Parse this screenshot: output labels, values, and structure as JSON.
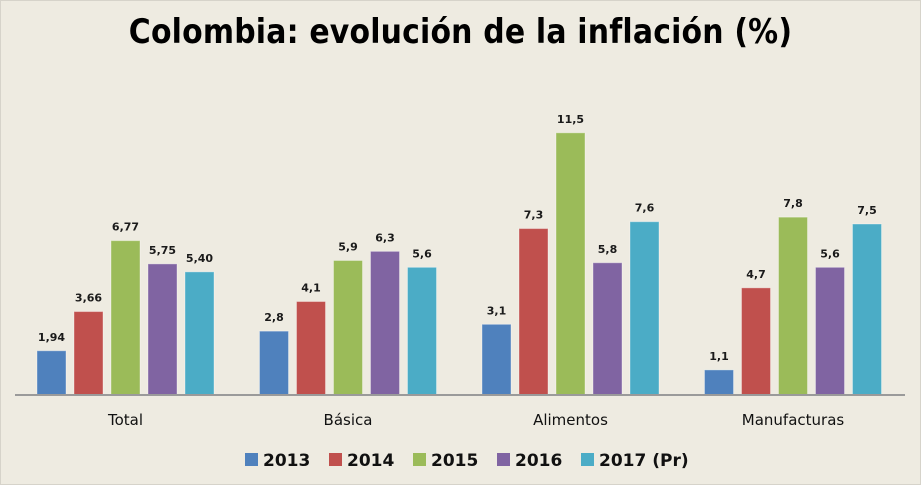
{
  "chart_data": {
    "type": "bar",
    "title": "Colombia: evolución de la inflación (%)",
    "xlabel": "",
    "ylabel": "",
    "ylim": [
      0,
      12
    ],
    "grid": false,
    "legend_position": "bottom",
    "categories": [
      "Total",
      "Básica",
      "Alimentos",
      "Manufacturas"
    ],
    "series": [
      {
        "name": "2013",
        "color": "#4f81bd",
        "values": [
          1.94,
          2.8,
          3.1,
          1.1
        ],
        "labels": [
          "1,94",
          "2,8",
          "3,1",
          "1,1"
        ]
      },
      {
        "name": "2014",
        "color": "#c0504d",
        "values": [
          3.66,
          4.1,
          7.3,
          4.7
        ],
        "labels": [
          "3,66",
          "4,1",
          "7,3",
          "4,7"
        ]
      },
      {
        "name": "2015",
        "color": "#9bbb59",
        "values": [
          6.77,
          5.9,
          11.5,
          7.8
        ],
        "labels": [
          "6,77",
          "5,9",
          "11,5",
          "7,8"
        ]
      },
      {
        "name": "2016",
        "color": "#8064a2",
        "values": [
          5.75,
          6.3,
          5.8,
          5.6
        ],
        "labels": [
          "5,75",
          "6,3",
          "5,8",
          "5,6"
        ]
      },
      {
        "name": "2017 (Pr)",
        "color": "#4bacc6",
        "values": [
          5.4,
          5.6,
          7.6,
          7.5
        ],
        "labels": [
          "5,40",
          "5,6",
          "7,6",
          "7,5"
        ]
      }
    ]
  }
}
